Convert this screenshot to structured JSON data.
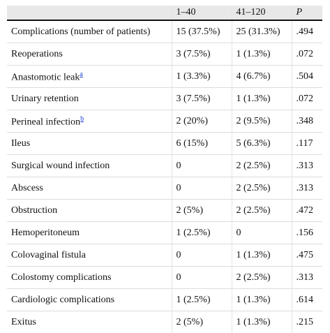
{
  "header": {
    "col0": "",
    "col1": "1–40",
    "col2": "41–120",
    "col3": "P"
  },
  "rows": [
    {
      "label": "Complications (number of patients)",
      "note": "",
      "a": "15 (37.5%)",
      "b": "25 (31.3%)",
      "p": ".494"
    },
    {
      "label": "Reoperations",
      "note": "",
      "a": "3 (7.5%)",
      "b": "1 (1.3%)",
      "p": ".072"
    },
    {
      "label": "Anastomotic leak",
      "note": "a",
      "a": "1 (3.3%)",
      "b": "4 (6.7%)",
      "p": ".504"
    },
    {
      "label": "Urinary retention",
      "note": "",
      "a": "3 (7.5%)",
      "b": "1 (1.3%)",
      "p": ".072"
    },
    {
      "label": "Perineal infection",
      "note": "b",
      "a": "2 (20%)",
      "b": "2 (9.5%)",
      "p": ".348"
    },
    {
      "label": "Ileus",
      "note": "",
      "a": "6 (15%)",
      "b": "5 (6.3%)",
      "p": ".117"
    },
    {
      "label": "Surgical wound infection",
      "note": "",
      "a": "0",
      "b": "2 (2.5%)",
      "p": ".313"
    },
    {
      "label": "Abscess",
      "note": "",
      "a": "0",
      "b": "2 (2.5%)",
      "p": ".313"
    },
    {
      "label": "Obstruction",
      "note": "",
      "a": "2 (5%)",
      "b": "2 (2.5%)",
      "p": ".472"
    },
    {
      "label": "Hemoperitoneum",
      "note": "",
      "a": "1 (2.5%)",
      "b": "0",
      "p": ".156"
    },
    {
      "label": "Colovaginal fistula",
      "note": "",
      "a": "0",
      "b": "1 (1.3%)",
      "p": ".475"
    },
    {
      "label": "Colostomy complications",
      "note": "",
      "a": "0",
      "b": "2 (2.5%)",
      "p": ".313"
    },
    {
      "label": "Cardiologic complications",
      "note": "",
      "a": "1 (2.5%)",
      "b": "1 (1.3%)",
      "p": ".614"
    },
    {
      "label": "Exitus",
      "note": "",
      "a": "2 (5%)",
      "b": "1 (1.3%)",
      "p": ".215"
    }
  ],
  "colors": {
    "header_bg": "#e8e8e8",
    "link": "#1a3cd6"
  }
}
